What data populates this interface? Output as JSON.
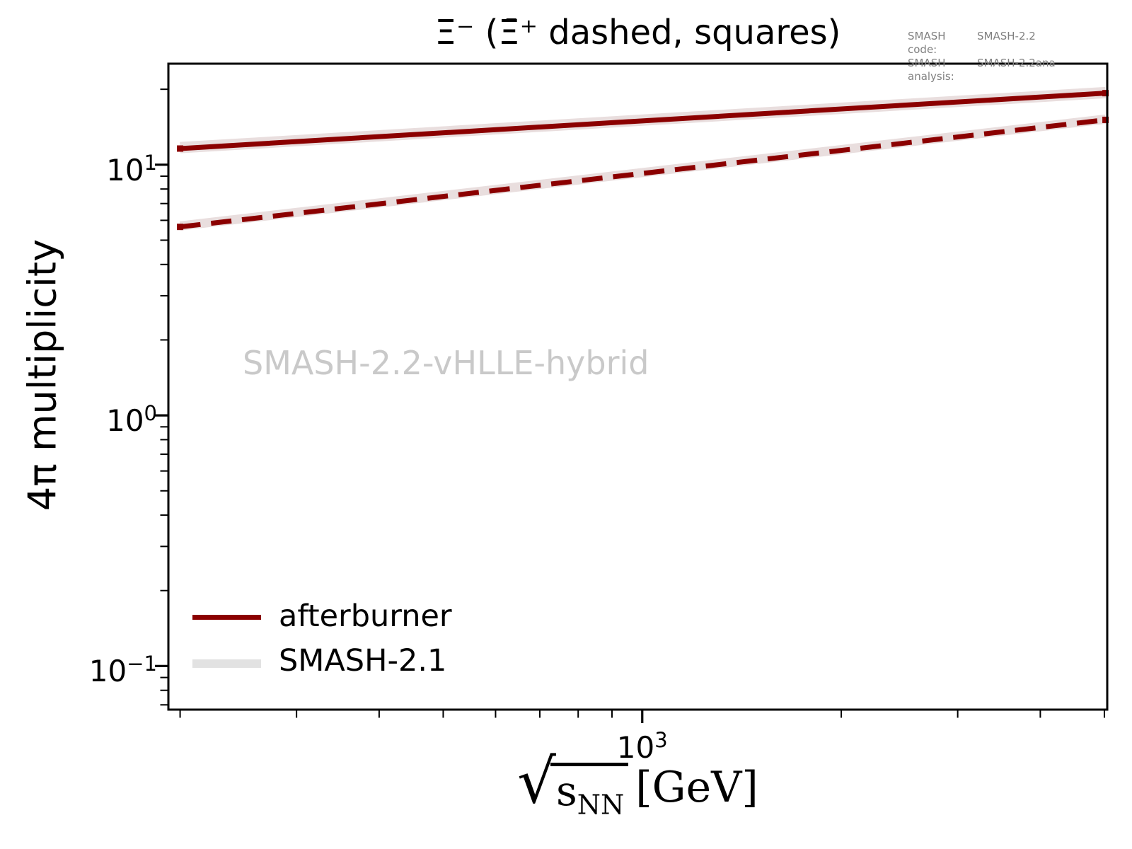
{
  "figure": {
    "title": "Ξ⁻ (Ξ̄⁺ dashed, squares)",
    "watermark": "SMASH-2.2-vHLLE-hybrid",
    "ylabel": "4π multiplicity",
    "xlabel_parts": {
      "radical": "√",
      "radicand_base": "s",
      "radicand_sub": "NN",
      "unit": "[GeV]"
    },
    "annotation": {
      "rows": [
        {
          "label": "SMASH code:",
          "value": "SMASH-2.2"
        },
        {
          "label": "SMASH analysis:",
          "value": "SMASH-2.2ana"
        }
      ]
    },
    "legend": {
      "position": "lower left",
      "entries": [
        {
          "label": "afterburner",
          "swatch_color": "#8b0000",
          "swatch_style": "line"
        },
        {
          "label": "SMASH-2.1",
          "swatch_color": "#e2e2e2",
          "swatch_style": "band"
        }
      ]
    }
  },
  "colors": {
    "dark_red": "#8b0000",
    "band_gray": "#e9dede",
    "legend_gray": "#e2e2e2",
    "watermark_gray": "#c9c9c9",
    "annotation_gray": "#808080",
    "axis_black": "#000000",
    "background": "#ffffff"
  },
  "chart_data": {
    "type": "line",
    "title": "Ξ⁻ (Ξ̄⁺ dashed, squares)",
    "xlabel": "√s_NN [GeV]",
    "ylabel": "4π multiplicity",
    "xscale": "log",
    "yscale": "log",
    "xlim": [
      192,
      5050
    ],
    "ylim": [
      0.067,
      25.3
    ],
    "grid": false,
    "legend_position": "lower left",
    "x_ticks": {
      "major": [
        {
          "value": 1000,
          "base": "10",
          "exp": "3"
        }
      ],
      "minor": [
        200,
        300,
        400,
        500,
        600,
        700,
        800,
        900,
        2000,
        3000,
        4000,
        5000
      ]
    },
    "y_ticks": {
      "major": [
        {
          "value": 10,
          "base": "10",
          "exp": "1"
        },
        {
          "value": 1,
          "base": "10",
          "exp": "0"
        },
        {
          "value": 0.1,
          "base": "10",
          "exp": "−1"
        }
      ],
      "minor": [
        20,
        9,
        8,
        7,
        6,
        5,
        4,
        3,
        2,
        0.9,
        0.8,
        0.7,
        0.6,
        0.5,
        0.4,
        0.3,
        0.2,
        0.09,
        0.08,
        0.07
      ]
    },
    "series": [
      {
        "id": "smash21-xi-minus",
        "name": "SMASH-2.1 (Ξ⁻)",
        "role": "band",
        "style": "solid",
        "color": "#e9dede",
        "width": 16,
        "marker": null,
        "x": [
          200,
          5020
        ],
        "y": [
          11.7,
          19.4
        ]
      },
      {
        "id": "smash21-anti-xi-plus",
        "name": "SMASH-2.1 (Ξ̄⁺)",
        "role": "band",
        "style": "solid",
        "color": "#e9dede",
        "width": 13,
        "marker": null,
        "x": [
          200,
          5020
        ],
        "y": [
          5.7,
          15.2
        ]
      },
      {
        "id": "afterburner-xi-minus",
        "name": "afterburner (Ξ⁻)",
        "role": "line",
        "style": "solid",
        "color": "#8b0000",
        "width": 7,
        "marker": "square",
        "x": [
          200,
          5020
        ],
        "y": [
          11.6,
          19.3
        ]
      },
      {
        "id": "afterburner-anti-xi-plus",
        "name": "afterburner (Ξ̄⁺, squares)",
        "role": "line",
        "style": "dashed",
        "color": "#8b0000",
        "width": 7,
        "marker": "square",
        "x": [
          200,
          5020
        ],
        "y": [
          5.65,
          15.1
        ]
      }
    ]
  }
}
